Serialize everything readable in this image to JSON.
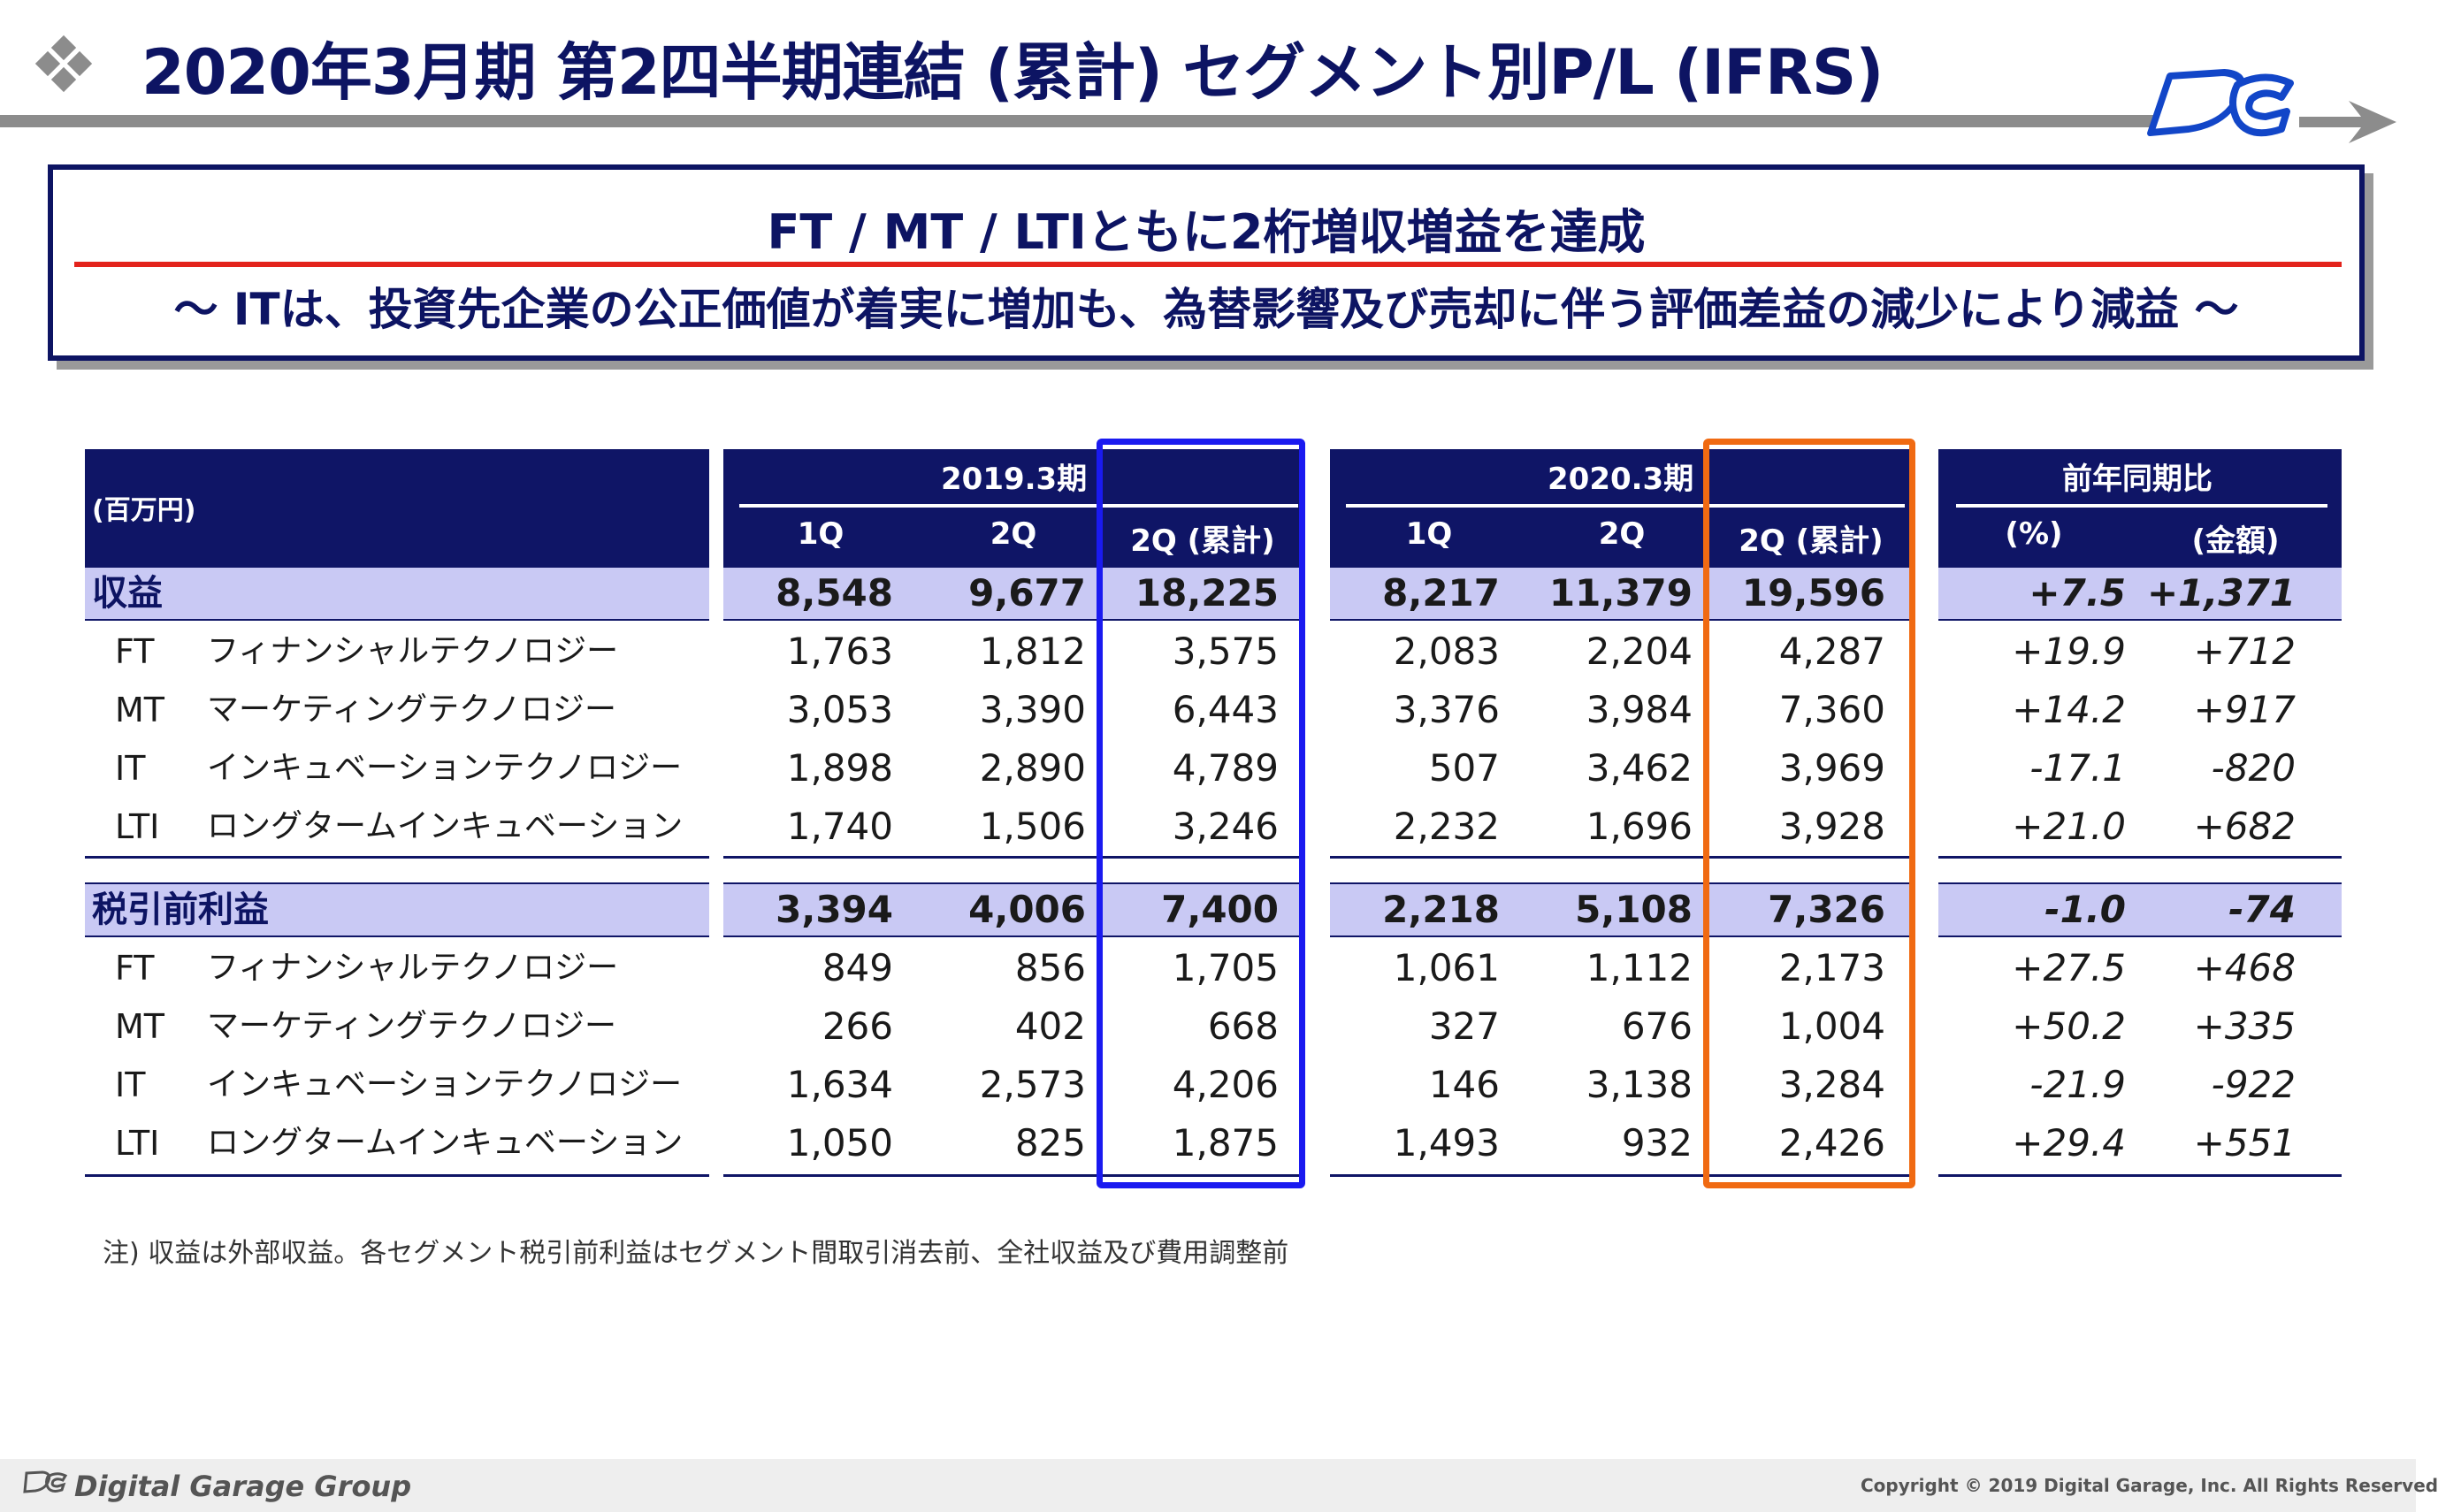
{
  "title": "2020年3月期 第2四半期連結 (累計) セグメント別P/L (IFRS)",
  "summary": {
    "headline": "FT / MT / LTIともに2桁増収増益を達成",
    "subline": "～ ITは、投資先企業の公正価値が着実に増加も、為替影響及び売却に伴う評価差益の減少により減益 ～"
  },
  "table": {
    "unit_label": "(百万円)",
    "groups": [
      {
        "title": "2019.3期",
        "cols": [
          "1Q",
          "2Q",
          "2Q (累計)"
        ]
      },
      {
        "title": "2020.3期",
        "cols": [
          "1Q",
          "2Q",
          "2Q (累計)"
        ]
      },
      {
        "title": "前年同期比",
        "cols": [
          "(%)",
          "(金額)"
        ]
      }
    ],
    "rows": [
      {
        "code": "収益",
        "name": "",
        "total": true,
        "v": [
          "8,548",
          "9,677",
          "18,225",
          "8,217",
          "11,379",
          "19,596",
          "+7.5",
          "+1,371"
        ]
      },
      {
        "code": "FT",
        "name": "フィナンシャルテクノロジー",
        "total": false,
        "v": [
          "1,763",
          "1,812",
          "3,575",
          "2,083",
          "2,204",
          "4,287",
          "+19.9",
          "+712"
        ]
      },
      {
        "code": "MT",
        "name": "マーケティングテクノロジー",
        "total": false,
        "v": [
          "3,053",
          "3,390",
          "6,443",
          "3,376",
          "3,984",
          "7,360",
          "+14.2",
          "+917"
        ]
      },
      {
        "code": "IT",
        "name": "インキュベーションテクノロジー",
        "total": false,
        "v": [
          "1,898",
          "2,890",
          "4,789",
          "507",
          "3,462",
          "3,969",
          "-17.1",
          "-820"
        ]
      },
      {
        "code": "LTI",
        "name": "ロングタームインキュベーション",
        "total": false,
        "v": [
          "1,740",
          "1,506",
          "3,246",
          "2,232",
          "1,696",
          "3,928",
          "+21.0",
          "+682"
        ]
      },
      {
        "code": "税引前利益",
        "name": "",
        "total": true,
        "v": [
          "3,394",
          "4,006",
          "7,400",
          "2,218",
          "5,108",
          "7,326",
          "-1.0",
          "-74"
        ]
      },
      {
        "code": "FT",
        "name": "フィナンシャルテクノロジー",
        "total": false,
        "v": [
          "849",
          "856",
          "1,705",
          "1,061",
          "1,112",
          "2,173",
          "+27.5",
          "+468"
        ]
      },
      {
        "code": "MT",
        "name": "マーケティングテクノロジー",
        "total": false,
        "v": [
          "266",
          "402",
          "668",
          "327",
          "676",
          "1,004",
          "+50.2",
          "+335"
        ]
      },
      {
        "code": "IT",
        "name": "インキュベーションテクノロジー",
        "total": false,
        "v": [
          "1,634",
          "2,573",
          "4,206",
          "146",
          "3,138",
          "3,284",
          "-21.9",
          "-922"
        ]
      },
      {
        "code": "LTI",
        "name": "ロングタームインキュベーション",
        "total": false,
        "v": [
          "1,050",
          "825",
          "1,875",
          "1,493",
          "932",
          "2,426",
          "+29.4",
          "+551"
        ]
      }
    ]
  },
  "footnote": "注) 収益は外部収益。各セグメント税引前利益はセグメント間取引消去前、全社収益及び費用調整前",
  "footer": {
    "brand": "Digital Garage Group",
    "copyright": "Copyright © 2019 Digital Garage, Inc. All Rights Reserved"
  },
  "colors": {
    "navy": "#0f1566",
    "band": "#c9c9f4",
    "highlight_2019": "#1a1af0",
    "highlight_2020": "#f06a12",
    "accent_red": "#e3231c"
  }
}
